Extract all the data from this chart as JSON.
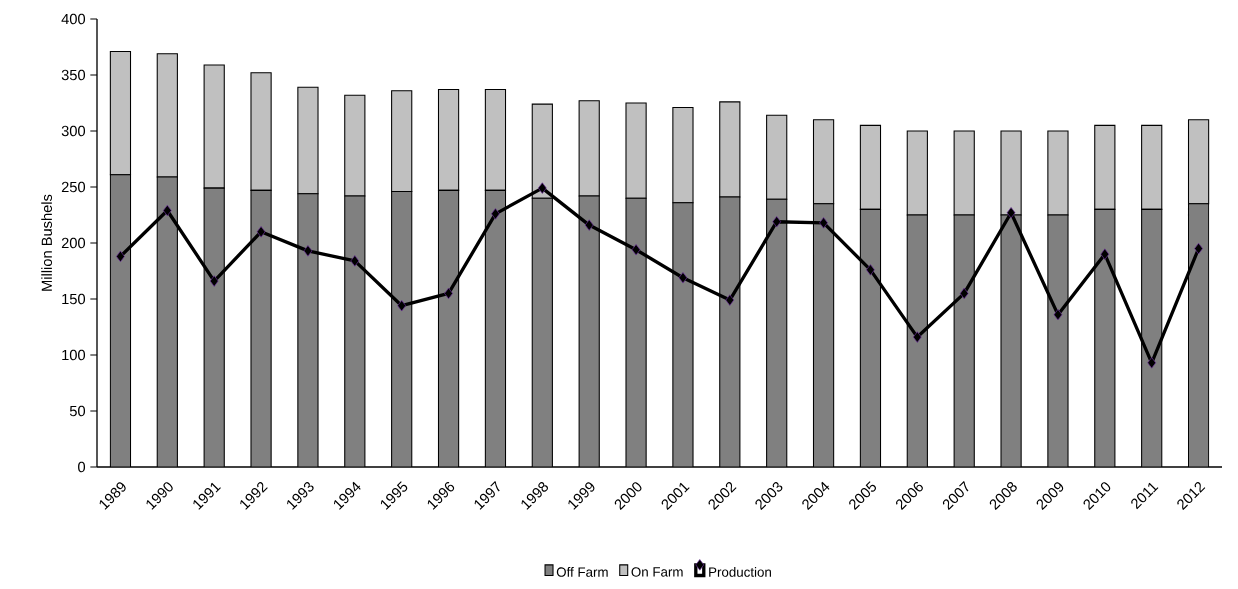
{
  "chart_data": {
    "type": "bar",
    "ylabel": "Million Bushels",
    "stacked": true,
    "legend": "bottom",
    "marker": "diamond",
    "line_style": "solid",
    "categories": [
      "1989",
      "1990",
      "1991",
      "1992",
      "1993",
      "1994",
      "1995",
      "1996",
      "1997",
      "1998",
      "1999",
      "2000",
      "2001",
      "2002",
      "2003",
      "2004",
      "2005",
      "2006",
      "2007",
      "2008",
      "2009",
      "2010",
      "2011",
      "2012"
    ],
    "ylim": [
      0,
      400
    ],
    "yticks": [
      0,
      50,
      100,
      150,
      200,
      250,
      300,
      350,
      400
    ],
    "series": [
      {
        "name": "Off Farm",
        "color": "#808080",
        "values": [
          261,
          259,
          249,
          247,
          244,
          242,
          246,
          247,
          247,
          240,
          242,
          240,
          236,
          241,
          239,
          235,
          230,
          225,
          225,
          225,
          225,
          230,
          230,
          235
        ]
      },
      {
        "name": "On Farm",
        "color": "#c0c0c0",
        "values": [
          110,
          110,
          110,
          105,
          95,
          90,
          90,
          90,
          90,
          84,
          85,
          85,
          85,
          85,
          75,
          75,
          75,
          75,
          75,
          75,
          75,
          75,
          75,
          75
        ]
      },
      {
        "name": "Production",
        "type": "line",
        "color": "#000000",
        "values": [
          188,
          229,
          166,
          210,
          193,
          184,
          144,
          155,
          226,
          249,
          216,
          194,
          169,
          149,
          219,
          218,
          176,
          116,
          155,
          227,
          136,
          190,
          93,
          195
        ]
      }
    ]
  }
}
